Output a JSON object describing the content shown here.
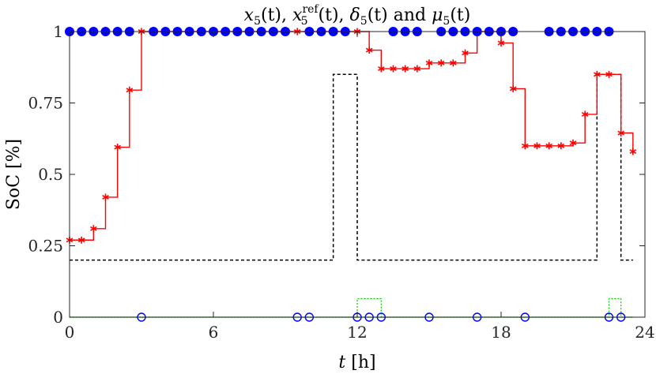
{
  "chart_data": {
    "type": "line",
    "title": "x5(t), x5ref(t), δ5(t) and μ5(t)",
    "title_parts": {
      "x": "x",
      "sub5": "5",
      "t": "(t)",
      "comma": ", ",
      "sup_ref": "ref",
      "delta": "δ",
      "and": " and ",
      "mu": "μ"
    },
    "xlabel": "t [h]",
    "xlabel_parts": {
      "t": "t",
      "unit": " [h]"
    },
    "ylabel": "SoC [%]",
    "xlim": [
      0,
      24
    ],
    "ylim": [
      0,
      1
    ],
    "xticks": [
      0,
      6,
      12,
      18,
      24
    ],
    "xtick_labels": [
      "0",
      "6",
      "12",
      "18",
      "24"
    ],
    "yticks": [
      0,
      0.25,
      0.5,
      0.75,
      1
    ],
    "ytick_labels": [
      "0",
      "0.25",
      "0.5",
      "0.75",
      "1"
    ],
    "grid": false,
    "colors": {
      "soc": "#ff0000",
      "ref": "#000000",
      "delta": "#00cc00",
      "mu": "#0000ff"
    },
    "series": [
      {
        "key": "soc",
        "style": "stairs-with-star-markers",
        "x": [
          0,
          0.5,
          1,
          1.5,
          2,
          2.5,
          3,
          3.5,
          4,
          4.5,
          5,
          5.5,
          6,
          6.5,
          7,
          7.5,
          8,
          8.5,
          9,
          9.5,
          10,
          10.5,
          11,
          11.5,
          12,
          12.5,
          13,
          13.5,
          14,
          14.5,
          15,
          15.5,
          16,
          16.5,
          17,
          17.5,
          18,
          18.5,
          19,
          19.5,
          20,
          20.5,
          21,
          21.5,
          22,
          22.5,
          23,
          23.5
        ],
        "y": [
          0.27,
          0.27,
          0.31,
          0.42,
          0.595,
          0.795,
          1.0,
          1.0,
          1.0,
          1.0,
          1.0,
          1.0,
          1.0,
          1.0,
          1.0,
          1.0,
          1.0,
          1.0,
          1.0,
          1.0,
          1.0,
          1.0,
          1.0,
          1.0,
          1.0,
          0.935,
          0.87,
          0.87,
          0.87,
          0.87,
          0.89,
          0.89,
          0.89,
          0.925,
          1.0,
          1.0,
          0.96,
          0.8,
          0.6,
          0.6,
          0.6,
          0.6,
          0.61,
          0.71,
          0.85,
          0.85,
          0.645,
          0.58
        ],
        "star_indices": [
          0,
          1,
          2,
          3,
          4,
          5,
          6,
          18,
          19,
          24,
          25,
          26,
          27,
          28,
          29,
          30,
          31,
          32,
          33,
          34,
          36,
          37,
          38,
          39,
          40,
          41,
          42,
          43,
          44,
          45,
          46,
          47
        ]
      },
      {
        "key": "ref",
        "style": "dashed-stairs",
        "x": [
          0,
          11,
          11,
          12,
          12,
          22,
          22,
          23,
          23,
          23.5
        ],
        "y": [
          0.2,
          0.2,
          0.85,
          0.85,
          0.2,
          0.2,
          0.85,
          0.85,
          0.2,
          0.2
        ]
      },
      {
        "key": "delta",
        "style": "dotted-stairs",
        "x": [
          0,
          12,
          12,
          13,
          13,
          22.5,
          22.5,
          23,
          23,
          23.5
        ],
        "y": [
          0,
          0,
          0.065,
          0.065,
          0,
          0,
          0.065,
          0.065,
          0,
          0
        ]
      },
      {
        "key": "mu_on",
        "style": "filled-circles",
        "x": [
          0,
          0.5,
          1,
          1.5,
          2,
          2.5,
          3.5,
          4,
          4.5,
          5,
          5.5,
          6,
          6.5,
          7,
          7.5,
          8,
          8.5,
          9,
          10,
          10.5,
          11,
          11.5,
          13.5,
          14,
          14.5,
          15.5,
          16,
          16.5,
          17,
          17.5,
          18,
          18.5,
          20,
          20.5,
          21,
          21.5,
          22,
          22.5
        ],
        "y": 1
      },
      {
        "key": "mu_off",
        "style": "open-circles",
        "x": [
          3,
          9.5,
          10,
          12,
          12.5,
          13,
          15,
          17,
          19,
          22.5,
          23
        ],
        "y": 0
      }
    ]
  }
}
